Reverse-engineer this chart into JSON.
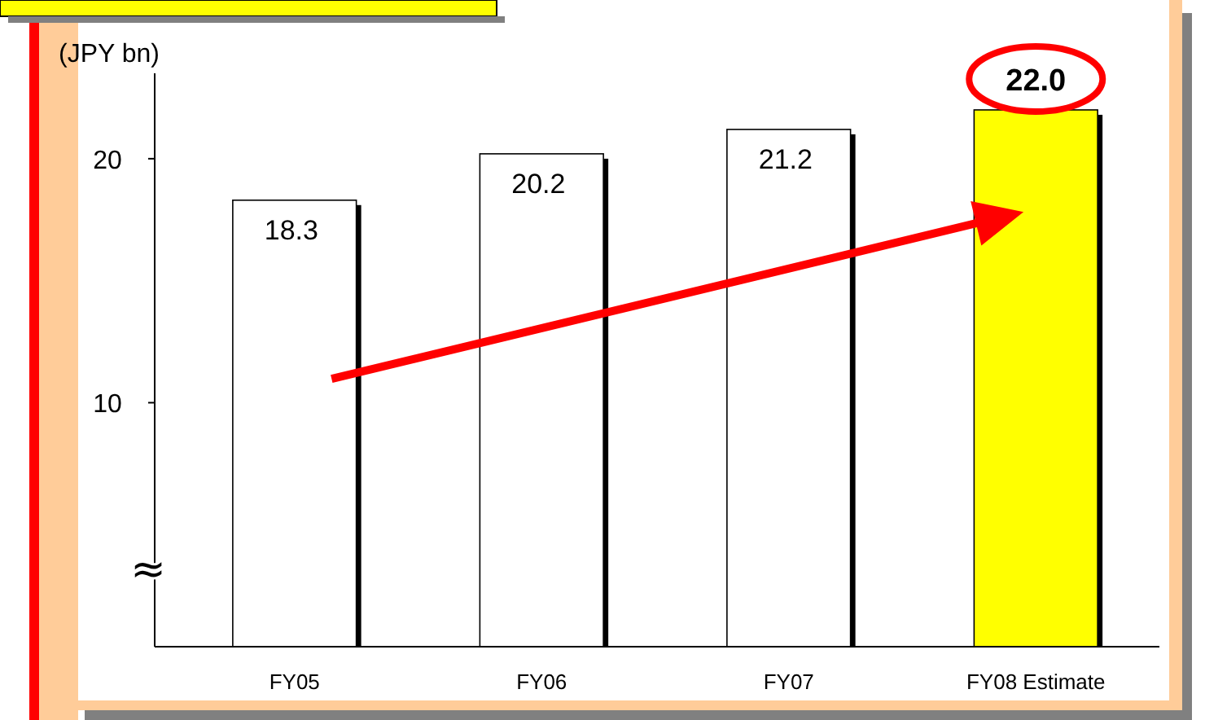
{
  "chart_data": {
    "type": "bar",
    "ylabel": "(JPY bn)",
    "categories": [
      "FY05",
      "FY06",
      "FY07",
      "FY08 Estimate"
    ],
    "values": [
      18.3,
      20.2,
      21.2,
      22.0
    ],
    "value_labels": [
      "18.3",
      "20.2",
      "21.2",
      "22.0"
    ],
    "colors": [
      "#ffffff",
      "#ffffff",
      "#ffffff",
      "#ffff00"
    ],
    "ylim": [
      0,
      23.5
    ],
    "yticks": [
      10,
      20
    ],
    "annotations": [
      "≈"
    ]
  }
}
